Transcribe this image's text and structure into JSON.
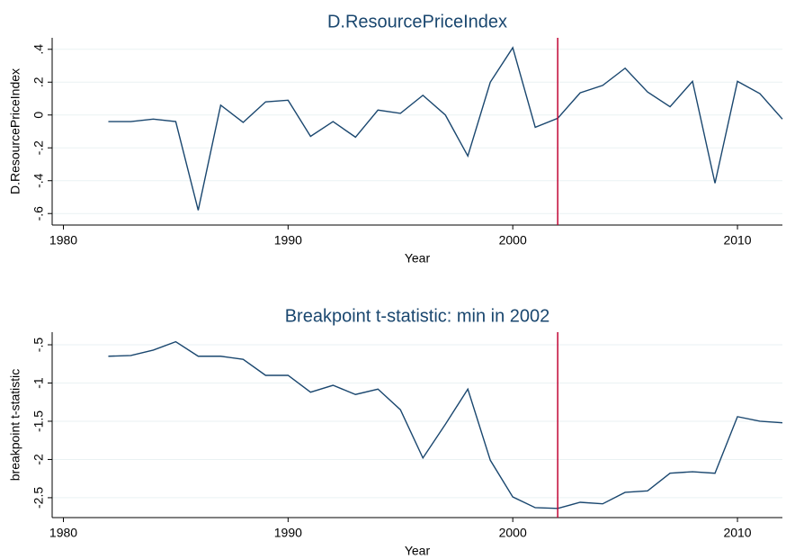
{
  "chart_data": [
    {
      "type": "line",
      "title": "D.ResourcePriceIndex",
      "x_label": "Year",
      "y_label": "D.ResourcePriceIndex",
      "x": [
        1982,
        1983,
        1984,
        1985,
        1986,
        1987,
        1988,
        1989,
        1990,
        1991,
        1992,
        1993,
        1994,
        1995,
        1996,
        1997,
        1998,
        1999,
        2000,
        2001,
        2002,
        2003,
        2004,
        2005,
        2006,
        2007,
        2008,
        2009,
        2010,
        2011,
        2012
      ],
      "series": [
        {
          "name": "D.ResourcePriceIndex",
          "color": "#1a476f",
          "values": [
            -0.04,
            -0.04,
            -0.025,
            -0.04,
            -0.58,
            0.06,
            -0.045,
            0.08,
            0.09,
            -0.13,
            -0.04,
            -0.135,
            0.03,
            0.01,
            0.12,
            0,
            -0.25,
            0.2,
            0.41,
            -0.075,
            -0.02,
            0.135,
            0.18,
            0.285,
            0.14,
            0.05,
            0.205,
            -0.415,
            0.205,
            0.13,
            -0.025
          ]
        }
      ],
      "xlim": [
        1979.5,
        2012
      ],
      "xticks": [
        1980,
        1990,
        2000,
        2010
      ],
      "ylim": [
        -0.67,
        0.47
      ],
      "yticks": [
        {
          "value": -0.6,
          "label": "-.6"
        },
        {
          "value": -0.4,
          "label": "-.4"
        },
        {
          "value": -0.2,
          "label": "-.2"
        },
        0,
        {
          "value": 0.2,
          "label": ".2"
        },
        {
          "value": 0.4,
          "label": ".4"
        }
      ],
      "grid": true,
      "vline": 2002,
      "vline_color": "#c10534"
    },
    {
      "type": "line",
      "title": "Breakpoint t-statistic: min in 2002",
      "x_label": "Year",
      "y_label": "breakpoint t-statistic",
      "x": [
        1982,
        1983,
        1984,
        1985,
        1986,
        1987,
        1988,
        1989,
        1990,
        1991,
        1992,
        1993,
        1994,
        1995,
        1996,
        1997,
        1998,
        1999,
        2000,
        2001,
        2002,
        2003,
        2004,
        2005,
        2006,
        2007,
        2008,
        2009,
        2010,
        2011,
        2012
      ],
      "series": [
        {
          "name": "breakpoint t-statistic",
          "color": "#1a476f",
          "values": [
            -0.65,
            -0.64,
            -0.57,
            -0.46,
            -0.65,
            -0.65,
            -0.69,
            -0.9,
            -0.9,
            -1.12,
            -1.03,
            -1.15,
            -1.08,
            -1.35,
            -1.98,
            -1.54,
            -1.08,
            -2.01,
            -2.49,
            -2.63,
            -2.64,
            -2.56,
            -2.58,
            -2.43,
            -2.41,
            -2.18,
            -2.16,
            -2.18,
            -1.44,
            -1.5,
            -1.52
          ]
        }
      ],
      "xlim": [
        1979.5,
        2012
      ],
      "xticks": [
        1980,
        1990,
        2000,
        2010
      ],
      "ylim": [
        -2.76,
        -0.335
      ],
      "yticks": [
        -2.5,
        -2,
        -1.5,
        -1,
        {
          "value": -0.5,
          "label": "-.5"
        }
      ],
      "grid": true,
      "vline": 2002,
      "vline_color": "#c10534"
    }
  ]
}
